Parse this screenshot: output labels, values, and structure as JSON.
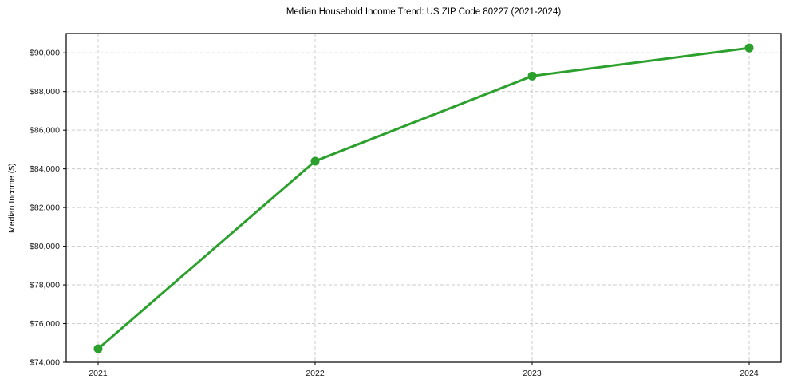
{
  "chart_data": {
    "type": "line",
    "title": "Median Household Income Trend: US ZIP Code 80227 (2021-2024)",
    "xlabel": "",
    "ylabel": "Median Income ($)",
    "categories": [
      "2021",
      "2022",
      "2023",
      "2024"
    ],
    "series": [
      {
        "name": "Median Household Income",
        "values": [
          74700,
          84400,
          88800,
          90250
        ]
      }
    ],
    "ylim": [
      74000,
      91000
    ],
    "yticks": [
      74000,
      76000,
      78000,
      80000,
      82000,
      84000,
      86000,
      88000,
      90000
    ],
    "ytick_labels": [
      "$74,000",
      "$76,000",
      "$78,000",
      "$80,000",
      "$82,000",
      "$84,000",
      "$86,000",
      "$88,000",
      "$90,000"
    ],
    "grid": true,
    "grid_style": "dashed",
    "legend_position": "none",
    "line_color": "#2ca02c",
    "marker": "circle",
    "grid_color": "#cccccc",
    "spine_color": "#000000",
    "background_color": "#ffffff"
  }
}
